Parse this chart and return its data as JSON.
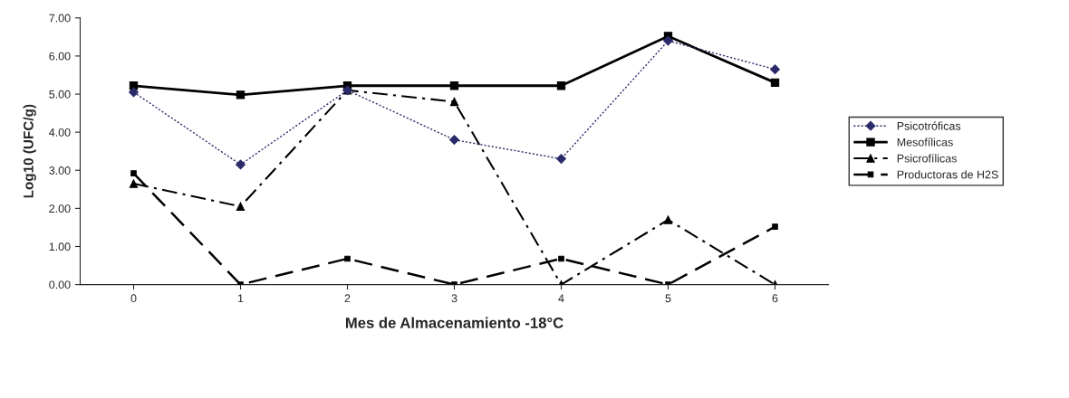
{
  "chart_data": {
    "type": "line",
    "xlabel": "Mes de Almacenamiento -18°C",
    "ylabel": "Log10 (UFC/g)",
    "x": [
      0,
      1,
      2,
      3,
      4,
      5,
      6
    ],
    "series": [
      {
        "name": "Psicotróficas",
        "color": "#2b2b6b",
        "marker": "diamond",
        "line_style": "dotted",
        "values": [
          5.05,
          3.15,
          5.1,
          3.8,
          3.3,
          6.4,
          5.65
        ]
      },
      {
        "name": "Mesofílicas",
        "color": "#000000",
        "marker": "square",
        "line_style": "solid",
        "values": [
          5.22,
          4.98,
          5.22,
          5.22,
          5.22,
          6.52,
          5.3
        ]
      },
      {
        "name": "Psicrofílicas",
        "color": "#000000",
        "marker": "triangle",
        "line_style": "dashdot",
        "values": [
          2.65,
          2.05,
          5.1,
          4.8,
          0,
          1.7,
          0
        ]
      },
      {
        "name": "Productoras de H2S",
        "color": "#000000",
        "marker": "square",
        "line_style": "dashed",
        "values": [
          2.92,
          0,
          0.68,
          0,
          0.68,
          0,
          1.52
        ]
      }
    ],
    "xlim": [
      -0.5,
      6.5
    ],
    "xticks": [
      0,
      1,
      2,
      3,
      4,
      5,
      6
    ],
    "ylim": [
      0,
      7
    ],
    "yticks": [
      {
        "value": 0,
        "label": "0.00"
      },
      {
        "value": 1,
        "label": "1.00"
      },
      {
        "value": 2,
        "label": "2.00"
      },
      {
        "value": 3,
        "label": "3.00"
      },
      {
        "value": 4,
        "label": "4.00"
      },
      {
        "value": 5,
        "label": "5.00"
      },
      {
        "value": 6,
        "label": "6.00"
      },
      {
        "value": 7,
        "label": "7.00"
      }
    ],
    "grid": false,
    "legend": "right"
  }
}
